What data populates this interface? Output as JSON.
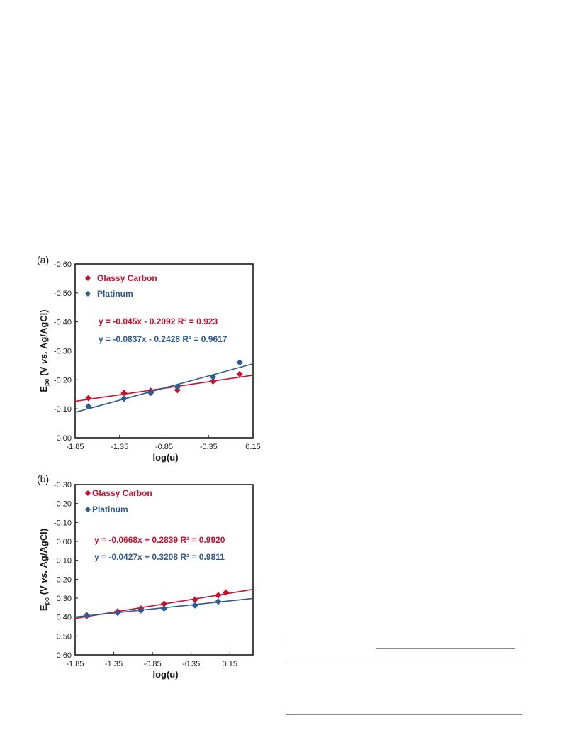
{
  "colors": {
    "glassy_carbon": "#c8102e",
    "platinum": "#2f5b94",
    "axis": "#1a1a1a"
  },
  "chart_data": [
    {
      "panel_label": "(a)",
      "type": "scatter",
      "xlabel": "log(u)",
      "ylabel_main": "E",
      "ylabel_sub": "pc",
      "ylabel_pre": " (V ",
      "ylabel_vs": "vs.",
      "ylabel_post": " Ag/AgCl)",
      "xlim": [
        -1.85,
        0.15
      ],
      "ylim": [
        0.0,
        -0.6
      ],
      "xticks": [
        -1.85,
        -1.35,
        -0.85,
        -0.35,
        0.15
      ],
      "xtick_labels": [
        "-1.85",
        "-1.35",
        "-0.85",
        "-0.35",
        "0.15"
      ],
      "yticks": [
        -0.6,
        -0.5,
        -0.4,
        -0.3,
        -0.2,
        -0.1,
        0.0
      ],
      "ytick_labels": [
        "-0.60",
        "-0.50",
        "-0.40",
        "-0.30",
        "-0.20",
        "-0.10",
        "0.00"
      ],
      "series": [
        {
          "name": "Glassy Carbon",
          "color": "#c8102e",
          "x": [
            -1.7,
            -1.3,
            -1.0,
            -0.7,
            -0.3,
            0.0
          ],
          "y": [
            -0.137,
            -0.155,
            -0.162,
            -0.165,
            -0.195,
            -0.22
          ],
          "fit": {
            "slope": -0.045,
            "intercept": -0.2092
          },
          "equation": "y = -0.045x - 0.2092",
          "r2": "R² = 0.923"
        },
        {
          "name": "Platinum",
          "color": "#2f5b94",
          "x": [
            -1.7,
            -1.3,
            -1.0,
            -0.7,
            -0.3,
            0.0
          ],
          "y": [
            -0.108,
            -0.135,
            -0.155,
            -0.175,
            -0.21,
            -0.26
          ],
          "fit": {
            "slope": -0.0837,
            "intercept": -0.2428
          },
          "equation": "y = -0.0837x - 0.2428",
          "r2": "R² = 0.9617"
        }
      ]
    },
    {
      "panel_label": "(b)",
      "type": "scatter",
      "xlabel": "log(u)",
      "ylabel_main": "E",
      "ylabel_sub": "pc",
      "ylabel_pre": " (V ",
      "ylabel_vs": "vs.",
      "ylabel_post": " Ag/AgCl)",
      "xlim": [
        -1.85,
        0.45
      ],
      "ylim": [
        0.6,
        -0.3
      ],
      "xticks": [
        -1.85,
        -1.35,
        -0.85,
        -0.35,
        0.15
      ],
      "xtick_labels": [
        "-1.85",
        "-1.35",
        "-0.85",
        "-0.35",
        "0.15"
      ],
      "yticks": [
        -0.3,
        -0.2,
        -0.1,
        0.0,
        0.1,
        0.2,
        0.3,
        0.4,
        0.5,
        0.6
      ],
      "ytick_labels": [
        "-0.30",
        "-0.20",
        "-0.10",
        "0.00",
        "0.10",
        "0.20",
        "0.30",
        "0.40",
        "0.50",
        "0.60"
      ],
      "series": [
        {
          "name": "Glassy Carbon",
          "color": "#c8102e",
          "x": [
            -1.7,
            -1.3,
            -1.0,
            -0.7,
            -0.3,
            0.0,
            0.1
          ],
          "y": [
            0.395,
            0.37,
            0.355,
            0.33,
            0.308,
            0.285,
            0.27
          ],
          "fit": {
            "slope": -0.0668,
            "intercept": 0.2839
          },
          "equation": "y = -0.0668x + 0.2839",
          "r2": "R² = 0.9920"
        },
        {
          "name": "Platinum",
          "color": "#2f5b94",
          "x": [
            -1.7,
            -1.3,
            -1.0,
            -0.7,
            -0.3,
            0.0
          ],
          "y": [
            0.39,
            0.378,
            0.365,
            0.355,
            0.338,
            0.318
          ],
          "fit": {
            "slope": -0.0427,
            "intercept": 0.3208
          },
          "equation": "y = -0.0427x + 0.3208",
          "r2": "R² = 0.9811"
        }
      ]
    }
  ]
}
